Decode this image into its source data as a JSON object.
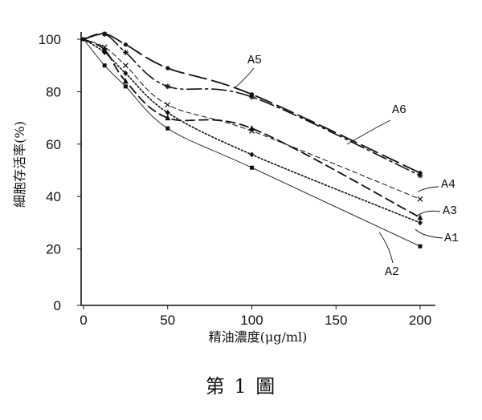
{
  "figure": {
    "caption": "第 1 圖"
  },
  "chart_data": {
    "type": "line",
    "xlabel": "精油濃度(μg/ml)",
    "ylabel": "細胞存活率(%)",
    "xlim": [
      0,
      210
    ],
    "ylim": [
      0,
      105
    ],
    "xticks": [
      0,
      50,
      100,
      150,
      200
    ],
    "yticks": [
      0,
      20,
      40,
      60,
      80,
      100
    ],
    "grid": false,
    "legend": "inline labels with leader lines",
    "x": [
      0,
      12.5,
      25,
      50,
      100,
      200
    ],
    "series": [
      {
        "name": "A1",
        "values": [
          100,
          95,
          87,
          72,
          56,
          30
        ],
        "dash": "2 2.5",
        "width": 1.6,
        "marker": "diamond"
      },
      {
        "name": "A2",
        "values": [
          100,
          90,
          82,
          66,
          51,
          21
        ],
        "dash": "",
        "width": 0.9,
        "marker": "square"
      },
      {
        "name": "A3",
        "values": [
          100,
          96,
          84,
          70,
          66,
          32
        ],
        "dash": "11 6",
        "width": 1.8,
        "marker": "triangle"
      },
      {
        "name": "A4",
        "values": [
          100,
          97,
          90,
          75,
          65,
          39
        ],
        "dash": "6 4",
        "width": 1.0,
        "marker": "x"
      },
      {
        "name": "A5",
        "values": [
          100,
          102,
          95,
          82,
          78,
          48
        ],
        "dash": "18 5 3 5",
        "width": 1.6,
        "marker": "star"
      },
      {
        "name": "A6",
        "values": [
          100,
          102,
          98,
          89,
          79,
          49
        ],
        "dash": "22 7",
        "width": 1.8,
        "marker": "dot"
      }
    ]
  }
}
